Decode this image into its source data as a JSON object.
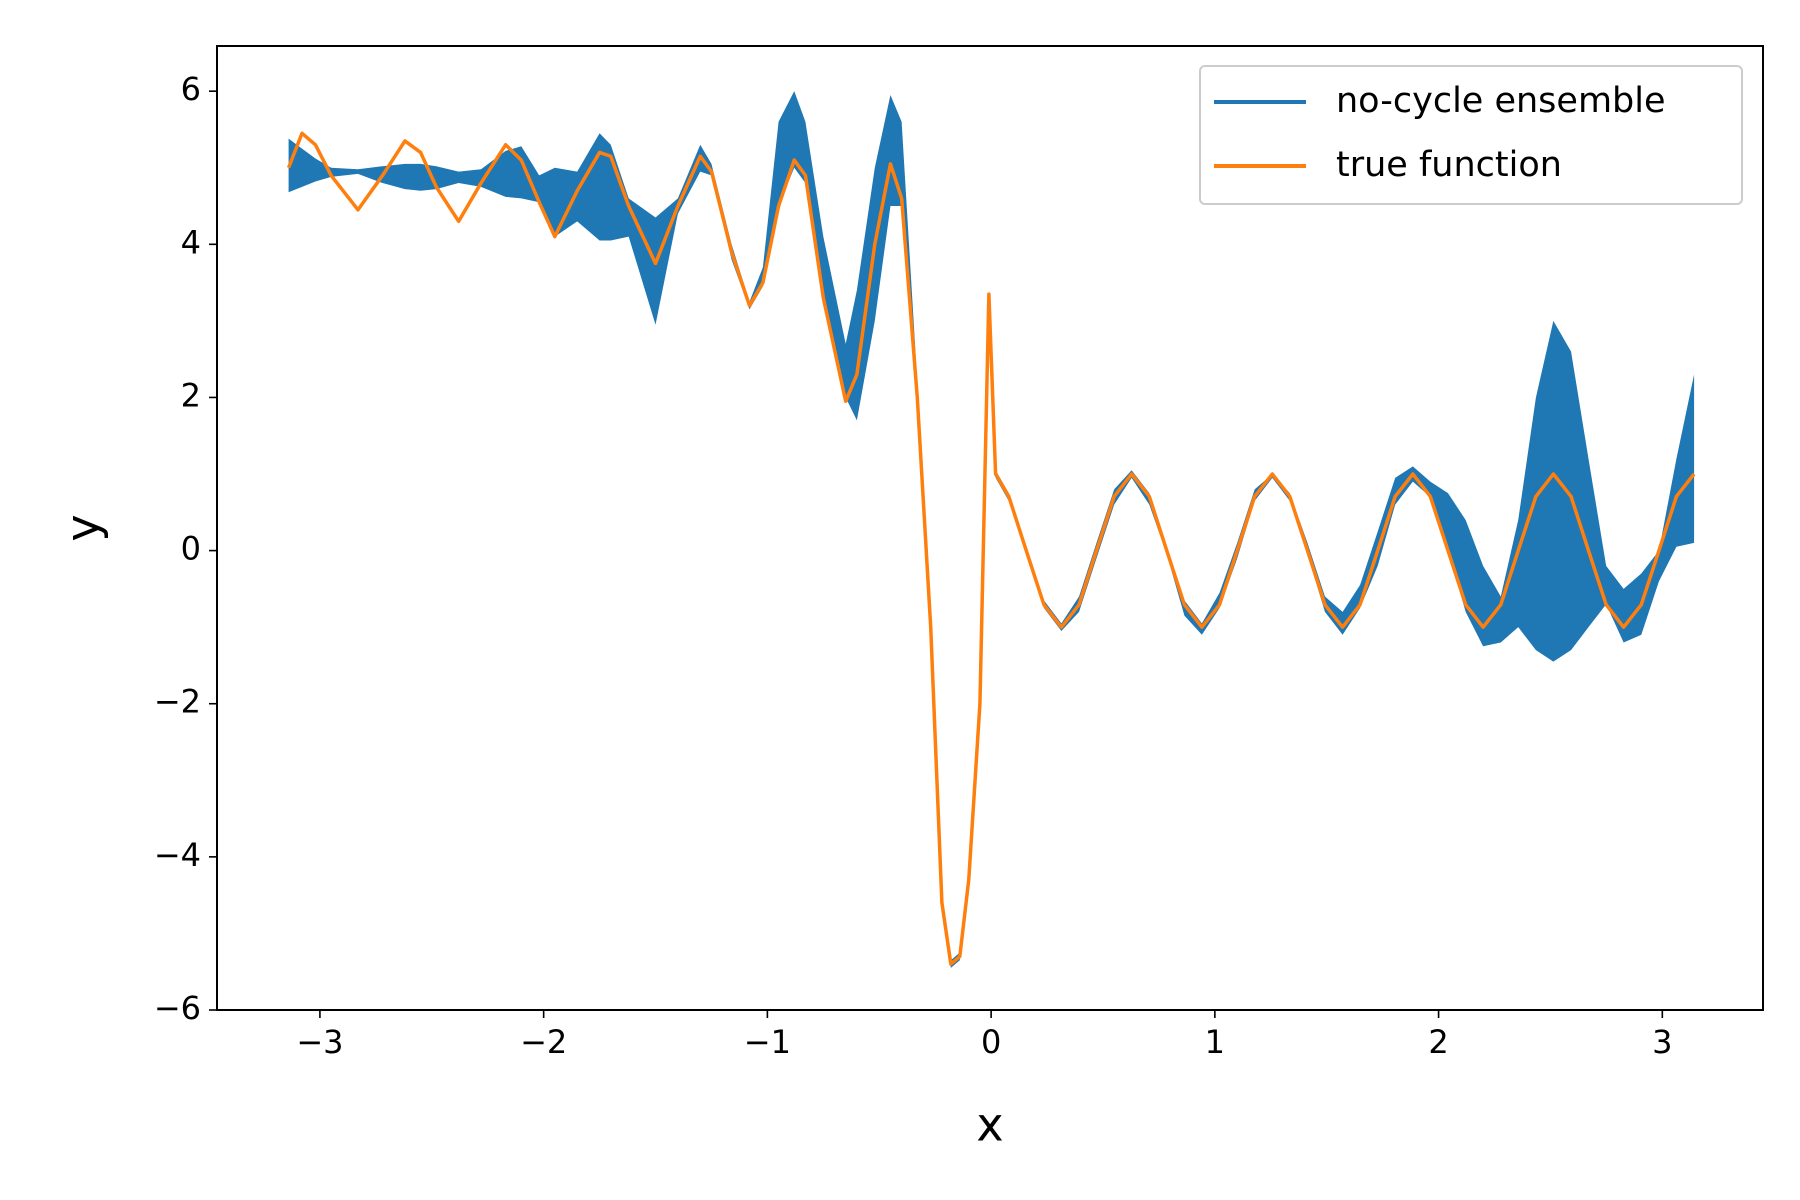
{
  "chart_data": {
    "type": "band-line",
    "xlabel": "x",
    "ylabel": "y",
    "xlim": [
      -3.46,
      3.45
    ],
    "ylim": [
      -6,
      6.59
    ],
    "xticks": [
      {
        "value": -3,
        "label": "−3"
      },
      {
        "value": -2,
        "label": "−2"
      },
      {
        "value": -1,
        "label": "−1"
      },
      0,
      1,
      2,
      3
    ],
    "yticks": [
      {
        "value": -6,
        "label": "−6"
      },
      {
        "value": -4,
        "label": "−4"
      },
      {
        "value": -2,
        "label": "−2"
      },
      0,
      2,
      4,
      6
    ],
    "legend": "upper right",
    "x": [
      -3.14,
      -3.08,
      -3.02,
      -2.95,
      -2.83,
      -2.72,
      -2.62,
      -2.55,
      -2.48,
      -2.38,
      -2.28,
      -2.17,
      -2.1,
      -2.02,
      -1.95,
      -1.85,
      -1.75,
      -1.7,
      -1.62,
      -1.5,
      -1.4,
      -1.3,
      -1.25,
      -1.16,
      -1.08,
      -1.02,
      -0.95,
      -0.88,
      -0.83,
      -0.75,
      -0.65,
      -0.6,
      -0.52,
      -0.45,
      -0.4,
      -0.33,
      -0.27,
      -0.22,
      -0.18,
      -0.14,
      -0.1,
      -0.05,
      -0.01,
      0.02,
      0.079,
      0.157,
      0.236,
      0.314,
      0.393,
      0.471,
      0.55,
      0.628,
      0.707,
      0.785,
      0.864,
      0.942,
      1.021,
      1.1,
      1.178,
      1.257,
      1.335,
      1.414,
      1.492,
      1.571,
      1.649,
      1.728,
      1.806,
      1.885,
      1.963,
      2.042,
      2.121,
      2.199,
      2.278,
      2.356,
      2.435,
      2.513,
      2.592,
      2.67,
      2.749,
      2.827,
      2.906,
      2.985,
      3.063,
      3.142
    ],
    "series": [
      {
        "name": "no-cycle ensemble",
        "type": "band",
        "color": "#1f77b4",
        "lower": [
          4.68,
          4.75,
          4.82,
          4.88,
          4.92,
          4.8,
          4.72,
          4.7,
          4.72,
          4.8,
          4.75,
          4.62,
          4.6,
          4.55,
          4.1,
          4.3,
          4.05,
          4.05,
          4.1,
          2.95,
          4.4,
          4.95,
          4.9,
          3.8,
          3.15,
          3.45,
          4.5,
          5.0,
          4.8,
          3.2,
          2.0,
          1.7,
          3.0,
          4.5,
          4.5,
          1.9,
          -1.05,
          -4.65,
          -5.45,
          -5.35,
          -4.35,
          -2.05,
          3.1,
          0.95,
          0.65,
          -0.05,
          -0.75,
          -1.05,
          -0.8,
          -0.1,
          0.6,
          0.95,
          0.6,
          -0.05,
          -0.85,
          -1.1,
          -0.75,
          -0.1,
          0.65,
          0.95,
          0.65,
          -0.05,
          -0.8,
          -1.1,
          -0.75,
          -0.2,
          0.6,
          0.9,
          0.7,
          0,
          -0.8,
          -1.25,
          -1.2,
          -1.0,
          -1.3,
          -1.45,
          -1.3,
          -1.0,
          -0.7,
          -1.2,
          -1.1,
          -0.4,
          0.05,
          0.1
        ],
        "upper": [
          5.38,
          5.25,
          5.12,
          5.0,
          4.98,
          5.02,
          5.05,
          5.05,
          5.02,
          4.95,
          4.98,
          5.22,
          5.28,
          4.9,
          5.0,
          4.95,
          5.45,
          5.3,
          4.6,
          4.35,
          4.6,
          5.3,
          5.05,
          4.0,
          3.25,
          3.7,
          5.6,
          6.0,
          5.6,
          4.1,
          2.7,
          3.4,
          5.0,
          5.95,
          5.6,
          2.2,
          -0.95,
          -4.55,
          -5.35,
          -5.25,
          -4.25,
          -1.95,
          3.3,
          1.05,
          0.75,
          0.05,
          -0.65,
          -0.95,
          -0.6,
          0.1,
          0.8,
          1.05,
          0.75,
          0.05,
          -0.65,
          -0.95,
          -0.55,
          0.1,
          0.8,
          1.0,
          0.75,
          0.1,
          -0.6,
          -0.8,
          -0.45,
          0.25,
          0.95,
          1.1,
          0.9,
          0.75,
          0.4,
          -0.2,
          -0.6,
          0.4,
          2.0,
          3.0,
          2.6,
          1.2,
          -0.2,
          -0.5,
          -0.3,
          0.0,
          1.2,
          2.3
        ]
      },
      {
        "name": "true function",
        "type": "line",
        "color": "#ff7f0e",
        "values": [
          5.0,
          5.45,
          5.3,
          4.9,
          4.45,
          4.9,
          5.35,
          5.2,
          4.75,
          4.3,
          4.8,
          5.3,
          5.1,
          4.55,
          4.1,
          4.7,
          5.2,
          5.15,
          4.5,
          3.75,
          4.5,
          5.15,
          4.95,
          3.9,
          3.2,
          3.5,
          4.5,
          5.1,
          4.9,
          3.3,
          1.95,
          2.3,
          4.0,
          5.05,
          4.6,
          2.0,
          -1.0,
          -4.6,
          -5.4,
          -5.3,
          -4.3,
          -2.0,
          3.35,
          1.0,
          0.707,
          0,
          -0.707,
          -1,
          -0.707,
          0,
          0.707,
          1,
          0.707,
          0,
          -0.707,
          -1,
          -0.707,
          0,
          0.707,
          1,
          0.707,
          0,
          -0.707,
          -1,
          -0.707,
          0,
          0.707,
          1,
          0.707,
          0,
          -0.707,
          -1,
          -0.707,
          0,
          0.707,
          1,
          0.707,
          0,
          -0.707,
          -1,
          -0.707,
          0,
          0.707,
          1
        ]
      }
    ]
  }
}
